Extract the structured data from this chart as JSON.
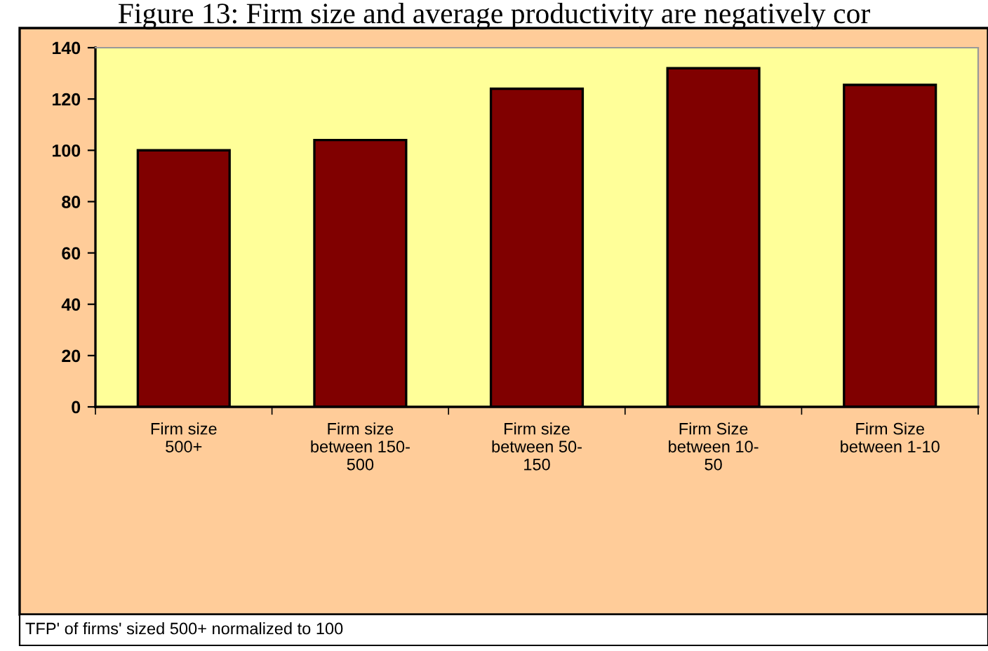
{
  "chart_data": {
    "type": "bar",
    "title": "Figure 13: Firm size and average productivity are negatively cor",
    "categories": [
      "Firm size\n500+",
      "Firm size\nbetween 150-\n500",
      "Firm size\nbetween 50-\n150",
      "Firm Size\nbetween 10-\n50",
      "Firm Size\nbetween 1-10"
    ],
    "values": [
      100,
      104,
      124,
      132,
      125.5
    ],
    "color": "#800000",
    "ylim": [
      0,
      140
    ],
    "yticks": [
      0,
      20,
      40,
      60,
      80,
      100,
      120,
      140
    ],
    "grid": false,
    "annotations": [
      "TFP' of firms' sized 500+ normalized to 100"
    ]
  }
}
